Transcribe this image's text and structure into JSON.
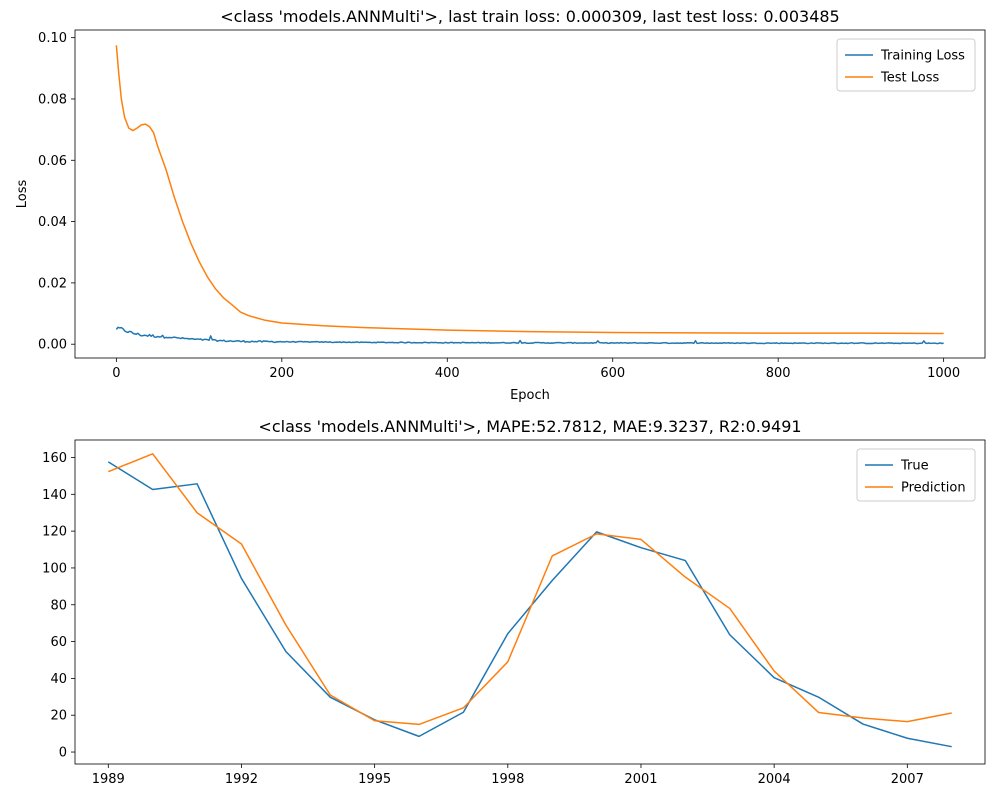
{
  "colors": {
    "series1": "#1f77b4",
    "series2": "#ff7f0e"
  },
  "chart_data": [
    {
      "type": "line",
      "title": "<class 'models.ANNMulti'>, last train loss: 0.000309, last test loss: 0.003485",
      "xlabel": "Epoch",
      "ylabel": "Loss",
      "xlim": [
        -50,
        1050
      ],
      "ylim": [
        -0.0045,
        0.1025
      ],
      "xticks": [
        0,
        200,
        400,
        600,
        800,
        1000
      ],
      "yticks": [
        0.0,
        0.02,
        0.04,
        0.06,
        0.08,
        0.1
      ],
      "ytick_labels": [
        "0.00",
        "0.02",
        "0.04",
        "0.06",
        "0.08",
        "0.10"
      ],
      "legend_position": "top-right",
      "series": [
        {
          "name": "Training Loss",
          "color": "#1f77b4",
          "noisy": true,
          "x": [
            0,
            5,
            10,
            15,
            20,
            30,
            40,
            50,
            60,
            80,
            100,
            120,
            140,
            160,
            200,
            250,
            300,
            400,
            500,
            600,
            700,
            800,
            900,
            1000
          ],
          "y": [
            0.005,
            0.0052,
            0.0045,
            0.004,
            0.0036,
            0.003,
            0.0028,
            0.0026,
            0.0024,
            0.0019,
            0.0015,
            0.0012,
            0.001,
            0.0009,
            0.0008,
            0.0007,
            0.0006,
            0.0005,
            0.00045,
            0.0004,
            0.00038,
            0.00035,
            0.00033,
            0.000309
          ]
        },
        {
          "name": "Test Loss",
          "color": "#ff7f0e",
          "noisy": false,
          "x": [
            0,
            3,
            6,
            10,
            15,
            20,
            25,
            30,
            35,
            40,
            45,
            50,
            60,
            70,
            80,
            90,
            100,
            110,
            120,
            130,
            140,
            150,
            160,
            180,
            200,
            250,
            300,
            350,
            400,
            500,
            600,
            700,
            800,
            900,
            1000
          ],
          "y": [
            0.0975,
            0.088,
            0.08,
            0.074,
            0.0705,
            0.0697,
            0.0705,
            0.0715,
            0.0718,
            0.071,
            0.069,
            0.0645,
            0.057,
            0.048,
            0.04,
            0.033,
            0.027,
            0.022,
            0.018,
            0.015,
            0.0128,
            0.0105,
            0.0093,
            0.0078,
            0.0069,
            0.006,
            0.0054,
            0.005,
            0.0046,
            0.0041,
            0.0038,
            0.0037,
            0.0036,
            0.0036,
            0.003485
          ]
        }
      ]
    },
    {
      "type": "line",
      "title": "<class 'models.ANNMulti'>, MAPE:52.7812, MAE:9.3237, R2:0.9491",
      "xlabel": "",
      "ylabel": "",
      "xlim": [
        1988.25,
        2008.75
      ],
      "ylim": [
        -6.5,
        169.5
      ],
      "xticks": [
        1989,
        1992,
        1995,
        1998,
        2001,
        2004,
        2007
      ],
      "yticks": [
        0,
        20,
        40,
        60,
        80,
        100,
        120,
        140,
        160
      ],
      "legend_position": "top-right",
      "series": [
        {
          "name": "True",
          "color": "#1f77b4",
          "x": [
            1989,
            1990,
            1991,
            1992,
            1993,
            1994,
            1995,
            1996,
            1997,
            1998,
            1999,
            2000,
            2001,
            2002,
            2003,
            2004,
            2005,
            2006,
            2007,
            2008
          ],
          "y": [
            157.6,
            142.6,
            145.7,
            94.3,
            54.6,
            29.8,
            17.5,
            8.5,
            21.6,
            64.3,
            93.2,
            119.6,
            111.0,
            104.0,
            63.7,
            40.4,
            29.8,
            15.2,
            7.5,
            2.9
          ]
        },
        {
          "name": "Prediction",
          "color": "#ff7f0e",
          "x": [
            1989,
            1990,
            1991,
            1992,
            1993,
            1994,
            1995,
            1996,
            1997,
            1998,
            1999,
            2000,
            2001,
            2002,
            2003,
            2004,
            2005,
            2006,
            2007,
            2008
          ],
          "y": [
            152.3,
            162.0,
            130.0,
            113.0,
            69.0,
            31.0,
            17.0,
            15.0,
            24.0,
            49.0,
            106.5,
            118.5,
            115.5,
            95.0,
            78.0,
            44.0,
            21.5,
            18.5,
            16.5,
            21.2
          ]
        }
      ]
    }
  ]
}
